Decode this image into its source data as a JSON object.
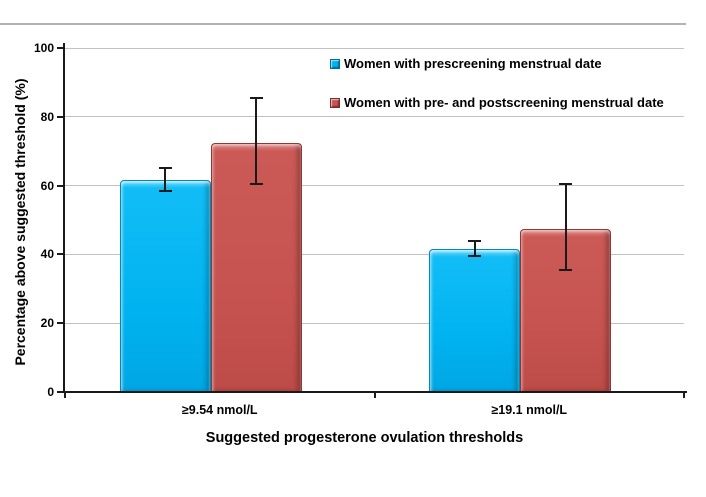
{
  "chart_data": {
    "type": "bar",
    "title": "",
    "xlabel": "Suggested progesterone ovulation thresholds",
    "ylabel": "Percentage above suggested threshold (%)",
    "categories": [
      "≥9.54 nmol/L",
      "≥19.1 nmol/L"
    ],
    "series": [
      {
        "name": "Women with prescreening menstrual date",
        "color": "#00b3f0",
        "marker_border": "#006f99",
        "values": [
          61.5,
          41.5
        ],
        "error_low": [
          58.5,
          39.5
        ],
        "error_high": [
          65,
          44
        ]
      },
      {
        "name": "Women with pre- and postscreening menstrual date",
        "color": "#c65350",
        "marker_border": "#7e2f2d",
        "values": [
          72.5,
          47.5
        ],
        "error_low": [
          60.5,
          35.5
        ],
        "error_high": [
          85.5,
          60.5
        ]
      }
    ],
    "ylim": [
      0,
      100
    ],
    "yticks": [
      0,
      20,
      40,
      60,
      80,
      100
    ],
    "grid": "horizontal gridlines on",
    "legend_position": "inside plot, top right",
    "axis_color": "#1a1a1a",
    "gridline_color": "#c2c2c2",
    "background_color": "#ffffff"
  }
}
